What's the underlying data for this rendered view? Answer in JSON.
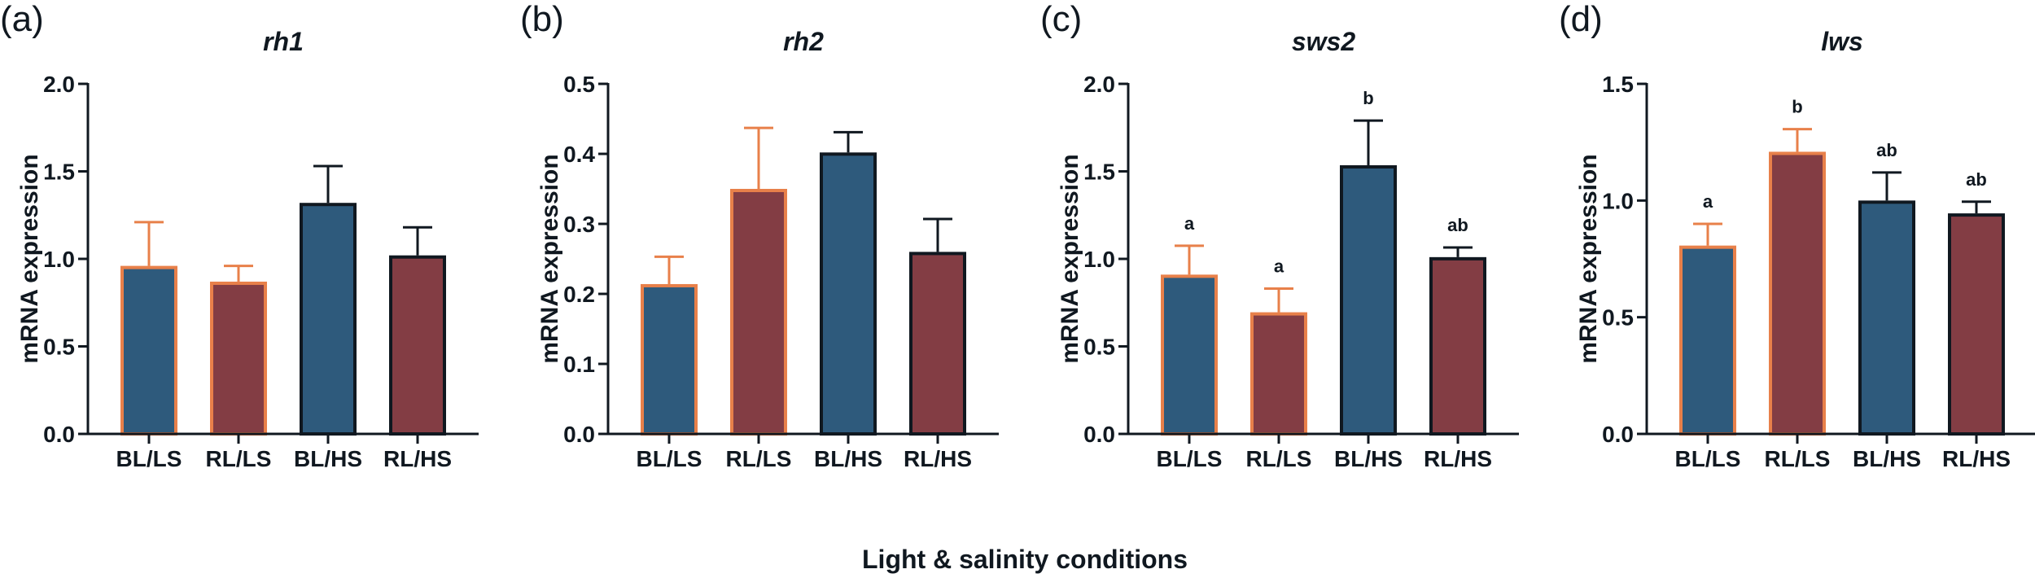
{
  "colors": {
    "blue": "#2e5a7c",
    "maroon": "#833d44",
    "orange": "#e8804a",
    "black": "#101820"
  },
  "shared_xlabel": "Light & salinity conditions",
  "chart_data": [
    {
      "type": "bar",
      "panel": "(a)",
      "title": "rh1",
      "ylabel": "mRNA expression",
      "xlabel": "",
      "ylim": [
        0,
        2.0
      ],
      "yticks": [
        "0.0",
        "0.5",
        "1.0",
        "1.5",
        "2.0"
      ],
      "ytick_values": [
        0,
        0.5,
        1.0,
        1.5,
        2.0
      ],
      "categories": [
        "BL/LS",
        "RL/LS",
        "BL/HS",
        "RL/HS"
      ],
      "values": [
        0.96,
        0.87,
        1.32,
        1.02
      ],
      "errors": [
        0.25,
        0.09,
        0.21,
        0.16
      ],
      "letters": [
        "",
        "",
        "",
        ""
      ]
    },
    {
      "type": "bar",
      "panel": "(b)",
      "title": "rh2",
      "ylabel": "mRNA expression",
      "xlabel": "",
      "ylim": [
        0,
        0.5
      ],
      "yticks": [
        "0.0",
        "0.1",
        "0.2",
        "0.3",
        "0.4",
        "0.5"
      ],
      "ytick_values": [
        0,
        0.1,
        0.2,
        0.3,
        0.4,
        0.5
      ],
      "categories": [
        "BL/LS",
        "RL/LS",
        "BL/HS",
        "RL/HS"
      ],
      "values": [
        0.214,
        0.35,
        0.402,
        0.26
      ],
      "errors": [
        0.039,
        0.087,
        0.029,
        0.047
      ],
      "letters": [
        "",
        "",
        "",
        ""
      ]
    },
    {
      "type": "bar",
      "panel": "(c)",
      "title": "sws2",
      "ylabel": "mRNA expression",
      "xlabel": "",
      "ylim": [
        0,
        2.0
      ],
      "yticks": [
        "0.0",
        "0.5",
        "1.0",
        "1.5",
        "2.0"
      ],
      "ytick_values": [
        0,
        0.5,
        1.0,
        1.5,
        2.0
      ],
      "categories": [
        "BL/LS",
        "RL/LS",
        "BL/HS",
        "RL/HS"
      ],
      "values": [
        0.91,
        0.695,
        1.535,
        1.01
      ],
      "errors": [
        0.165,
        0.135,
        0.255,
        0.055
      ],
      "letters": [
        "a",
        "a",
        "b",
        "ab"
      ]
    },
    {
      "type": "bar",
      "panel": "(d)",
      "title": "lws",
      "ylabel": "mRNA expression",
      "xlabel": "",
      "ylim": [
        0,
        1.5
      ],
      "yticks": [
        "0.0",
        "0.5",
        "1.0",
        "1.5"
      ],
      "ytick_values": [
        0,
        0.5,
        1.0,
        1.5
      ],
      "categories": [
        "BL/LS",
        "RL/LS",
        "BL/HS",
        "RL/HS"
      ],
      "values": [
        0.807,
        1.209,
        1.0,
        0.945
      ],
      "errors": [
        0.093,
        0.097,
        0.12,
        0.05
      ],
      "letters": [
        "a",
        "b",
        "ab",
        "ab"
      ]
    }
  ]
}
